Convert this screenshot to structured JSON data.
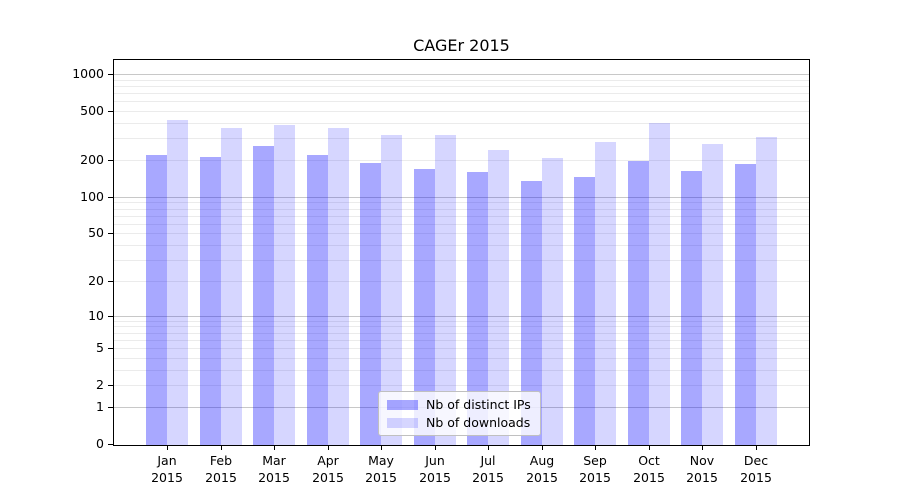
{
  "title": "CAGEr 2015",
  "chart_data": {
    "type": "bar",
    "title": "CAGEr 2015",
    "xlabel": "",
    "ylabel": "",
    "y_scale": "log1p",
    "ylim": [
      0,
      1000
    ],
    "grid": "horizontal-log-decades",
    "legend_position": "bottom-center",
    "categories": [
      "Jan",
      "Feb",
      "Mar",
      "Apr",
      "May",
      "Jun",
      "Jul",
      "Aug",
      "Sep",
      "Oct",
      "Nov",
      "Dec"
    ],
    "year_label": "2015",
    "y_ticks": [
      0,
      1,
      2,
      5,
      10,
      20,
      50,
      100,
      200,
      500,
      1000
    ],
    "series": [
      {
        "name": "Nb of distinct IPs",
        "color": "rgba(0,0,255,0.34)",
        "values": [
          220,
          210,
          262,
          218,
          190,
          169,
          160,
          135,
          145,
          196,
          163,
          184
        ]
      },
      {
        "name": "Nb of downloads",
        "color": "rgba(0,0,255,0.16)",
        "values": [
          420,
          366,
          388,
          365,
          320,
          317,
          241,
          207,
          281,
          400,
          270,
          309
        ]
      }
    ]
  },
  "colors": {
    "grid_major": "#c8c8c8",
    "grid_minor": "#ebebeb",
    "axis": "#000000",
    "legend_border": "#c0c0c0"
  }
}
